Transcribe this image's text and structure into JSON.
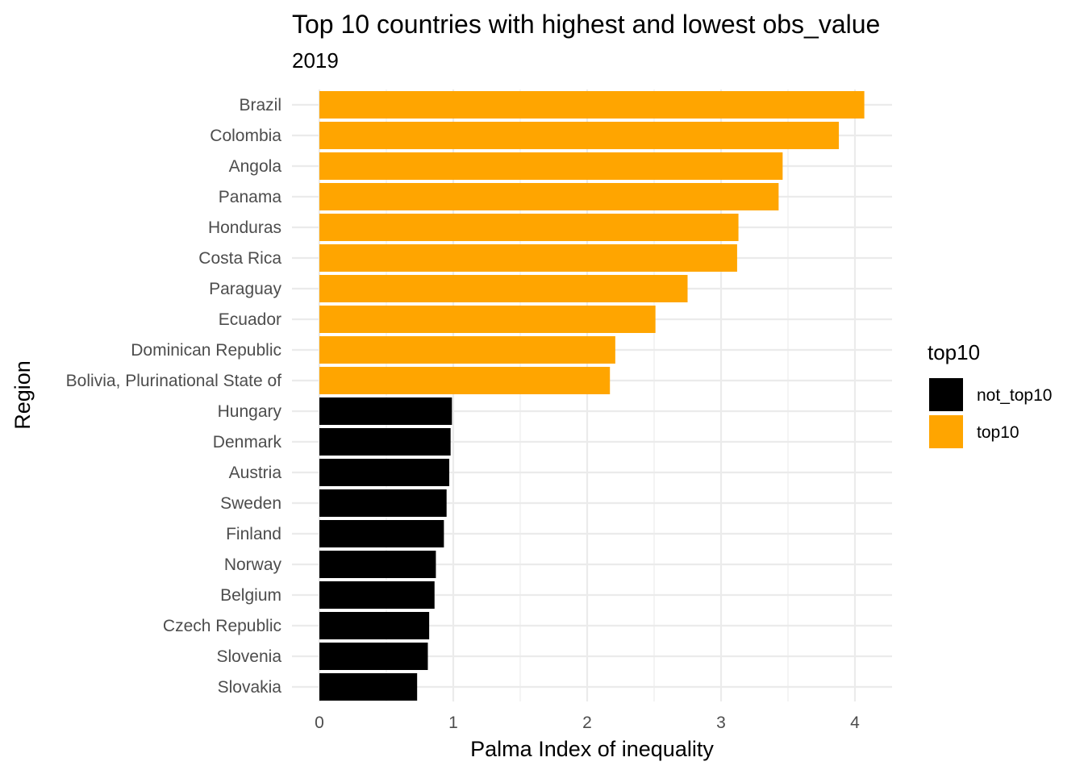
{
  "chart_data": {
    "type": "bar",
    "orientation": "horizontal",
    "title": "Top 10 countries with highest and lowest obs_value",
    "subtitle": "2019",
    "xlabel": "Palma Index of inequality",
    "ylabel": "Region",
    "xlim": [
      0,
      4.25
    ],
    "x_ticks": [
      0,
      1,
      2,
      3,
      4
    ],
    "grid": true,
    "legend": {
      "title": "top10",
      "position": "right",
      "entries": [
        {
          "key": "not_top10",
          "label": "not_top10",
          "color": "#000000"
        },
        {
          "key": "top10",
          "label": "top10",
          "color": "#FFA500"
        }
      ]
    },
    "categories": [
      "Brazil",
      "Colombia",
      "Angola",
      "Panama",
      "Honduras",
      "Costa Rica",
      "Paraguay",
      "Ecuador",
      "Dominican Republic",
      "Bolivia, Plurinational State of",
      "Hungary",
      "Denmark",
      "Austria",
      "Sweden",
      "Finland",
      "Norway",
      "Belgium",
      "Czech Republic",
      "Slovenia",
      "Slovakia"
    ],
    "values": [
      4.07,
      3.88,
      3.46,
      3.43,
      3.13,
      3.12,
      2.75,
      2.51,
      2.21,
      2.17,
      0.99,
      0.98,
      0.97,
      0.95,
      0.93,
      0.87,
      0.86,
      0.82,
      0.81,
      0.73
    ],
    "groups": [
      "top10",
      "top10",
      "top10",
      "top10",
      "top10",
      "top10",
      "top10",
      "top10",
      "top10",
      "top10",
      "not_top10",
      "not_top10",
      "not_top10",
      "not_top10",
      "not_top10",
      "not_top10",
      "not_top10",
      "not_top10",
      "not_top10",
      "not_top10"
    ]
  }
}
